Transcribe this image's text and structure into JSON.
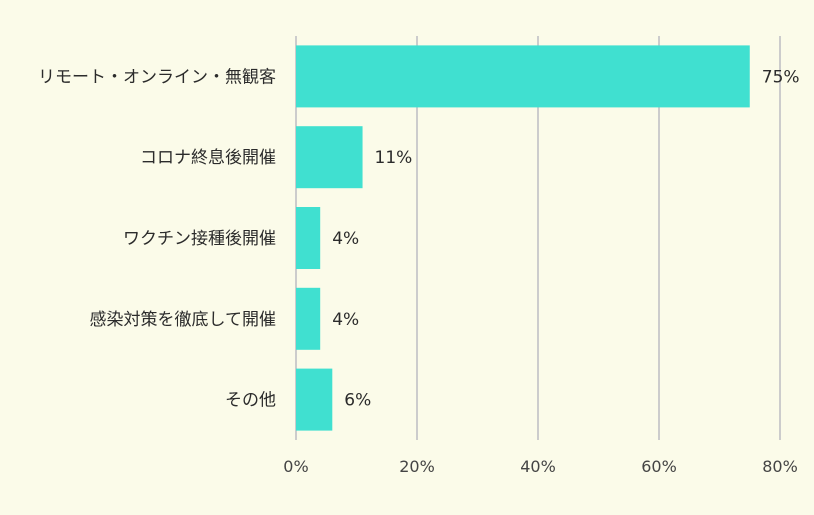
{
  "chart_data": {
    "type": "bar",
    "orientation": "horizontal",
    "categories": [
      "リモート・オンライン・無観客",
      "コロナ終息後開催",
      "ワクチン接種後開催",
      "感染対策を徹底して開催",
      "その他"
    ],
    "values": [
      75,
      11,
      4,
      4,
      6
    ],
    "value_labels": [
      "75%",
      "11%",
      "4%",
      "4%",
      "6%"
    ],
    "x_ticks": [
      0,
      20,
      40,
      60,
      80
    ],
    "x_tick_labels": [
      "0%",
      "20%",
      "40%",
      "60%",
      "80%"
    ],
    "xlim": [
      0,
      80
    ],
    "grid": "vertical",
    "bar_color": "#40e0d0",
    "background_color": "#fbfbe9",
    "gridline_color": "#cccccc"
  }
}
